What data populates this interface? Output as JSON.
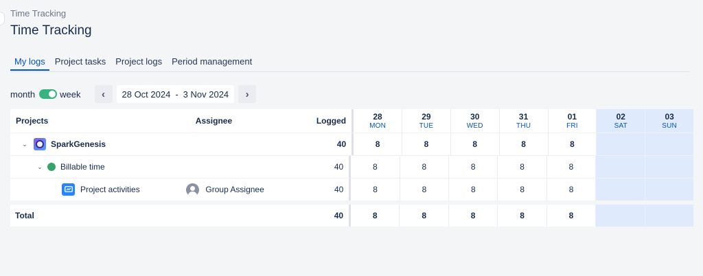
{
  "breadcrumb": "Time Tracking",
  "title": "Time Tracking",
  "tabs": [
    "My logs",
    "Project tasks",
    "Project logs",
    "Period management"
  ],
  "controls": {
    "month_label": "month",
    "week_label": "week",
    "prev": "‹",
    "next": "›",
    "range_start": "28 Oct 2024",
    "range_sep": "-",
    "range_end": "3 Nov 2024"
  },
  "columns": {
    "projects": "Projects",
    "assignee": "Assignee",
    "logged": "Logged"
  },
  "days": [
    {
      "num": "28",
      "name": "MON"
    },
    {
      "num": "29",
      "name": "TUE"
    },
    {
      "num": "30",
      "name": "WED"
    },
    {
      "num": "31",
      "name": "THU"
    },
    {
      "num": "01",
      "name": "FRI"
    },
    {
      "num": "02",
      "name": "SAT"
    },
    {
      "num": "03",
      "name": "SUN"
    }
  ],
  "rows": [
    {
      "name": "SparkGenesis",
      "assignee": "",
      "logged": "40",
      "values": [
        "8",
        "8",
        "8",
        "8",
        "8",
        "",
        ""
      ]
    },
    {
      "name": "Billable time",
      "assignee": "",
      "logged": "40",
      "values": [
        "8",
        "8",
        "8",
        "8",
        "8",
        "",
        ""
      ]
    },
    {
      "name": "Project activities",
      "assignee": "Group Assignee",
      "logged": "40",
      "values": [
        "8",
        "8",
        "8",
        "8",
        "8",
        "",
        ""
      ]
    }
  ],
  "total": {
    "label": "Total",
    "logged": "40",
    "values": [
      "8",
      "8",
      "8",
      "8",
      "8",
      "",
      ""
    ]
  },
  "colors": {
    "accent": "#0052cc",
    "toggle": "#36b37e",
    "weekend": "#dfeafc",
    "billable_dot": "#36a36a"
  }
}
